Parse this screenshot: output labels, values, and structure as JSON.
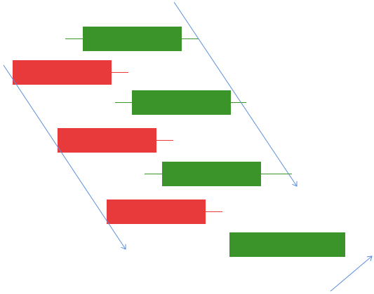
{
  "colors": {
    "background": "#ffffff",
    "bullish": "#3a9429",
    "bearish": "#e83a3a",
    "trendline": "#5b8fdc"
  },
  "candles": [
    {
      "kind": "bullish"
    },
    {
      "kind": "bearish"
    },
    {
      "kind": "bullish"
    },
    {
      "kind": "bearish"
    },
    {
      "kind": "bullish"
    },
    {
      "kind": "bearish"
    },
    {
      "kind": "bullish"
    }
  ],
  "trendlines": [
    {
      "direction": "down"
    },
    {
      "direction": "down"
    },
    {
      "direction": "up"
    }
  ]
}
